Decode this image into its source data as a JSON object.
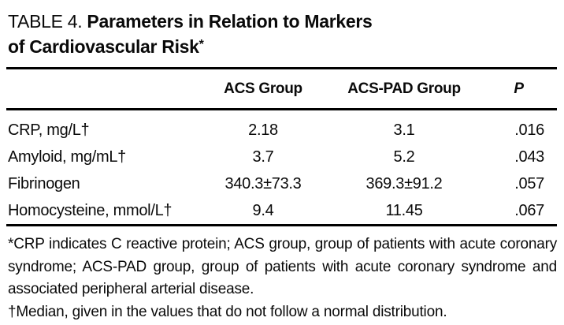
{
  "title": {
    "prefix": "TABLE 4. ",
    "line1": "Parameters in Relation to Markers",
    "line2": "of Cardiovascular Risk",
    "footnote_marker": "*"
  },
  "table": {
    "header": {
      "parameter": "",
      "acs_group": "ACS Group",
      "acs_pad_group": "ACS-PAD Group",
      "p": "P"
    },
    "rows": [
      {
        "parameter": "CRP, mg/L†",
        "acs_group": "2.18",
        "acs_pad_group": "3.1",
        "p": ".016"
      },
      {
        "parameter": "Amyloid, mg/mL†",
        "acs_group": "3.7",
        "acs_pad_group": "5.2",
        "p": ".043"
      },
      {
        "parameter": "Fibrinogen",
        "acs_group": "340.3±73.3",
        "acs_pad_group": "369.3±91.2",
        "p": ".057"
      },
      {
        "parameter": "Homocysteine, mmol/L†",
        "acs_group": "9.4",
        "acs_pad_group": "11.45",
        "p": ".067"
      }
    ]
  },
  "footnotes": [
    "*CRP indicates C reactive protein; ACS group, group of patients with acute coronary syndrome; ACS-PAD group, group of patients with acute coronary syndrome and associated peripheral arterial disease.",
    "†Median, given in the values that do not follow a normal distribution."
  ],
  "colors": {
    "text": "#0a0a0a",
    "background": "#ffffff",
    "rule": "#000000"
  }
}
